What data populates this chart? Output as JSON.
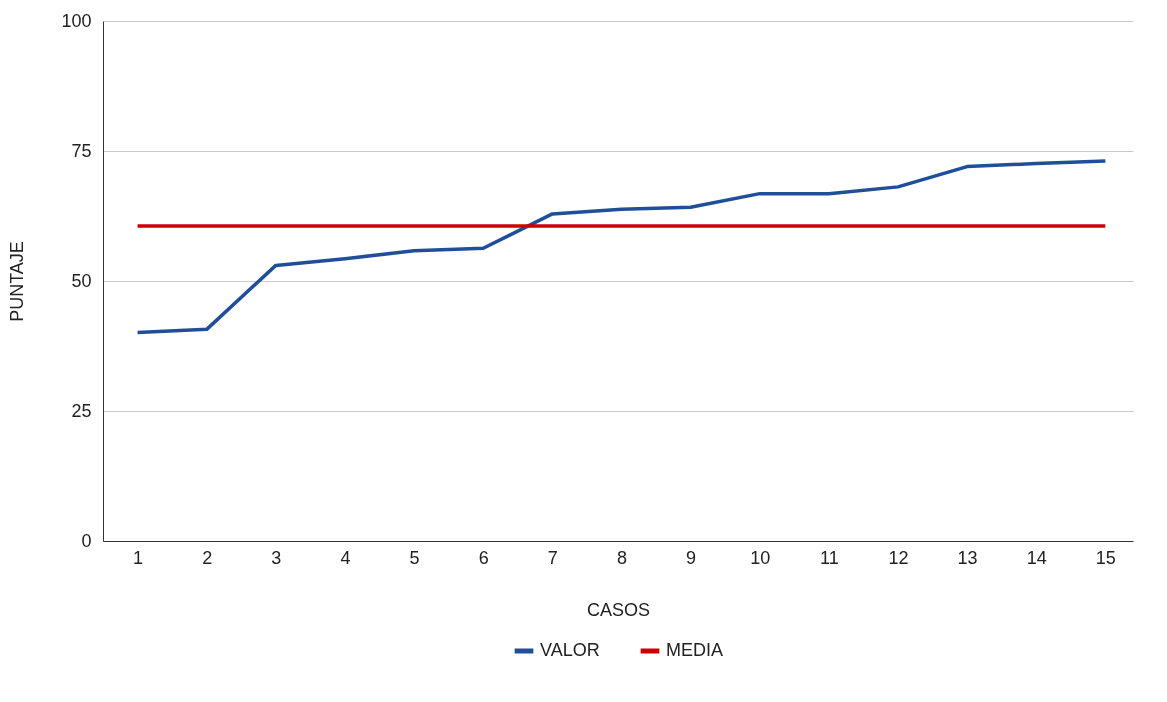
{
  "chart_data": {
    "type": "line",
    "xlabel": "CASOS",
    "ylabel": "PUNTAJE",
    "x": [
      1,
      2,
      3,
      4,
      5,
      6,
      7,
      8,
      9,
      10,
      11,
      12,
      13,
      14,
      15
    ],
    "xlim": [
      0.5,
      15.4
    ],
    "xticks": [
      1,
      2,
      3,
      4,
      5,
      6,
      7,
      8,
      9,
      10,
      11,
      12,
      13,
      14,
      15
    ],
    "series": [
      {
        "name": "VALOR",
        "color": "#1f4e9a",
        "values": [
          40.1,
          40.7,
          53.0,
          54.3,
          55.8,
          56.3,
          62.9,
          63.8,
          64.2,
          66.8,
          66.8,
          68.1,
          72.0,
          72.6,
          73.1
        ]
      },
      {
        "name": "MEDIA",
        "color": "#cc0000",
        "values": [
          60.6,
          60.6,
          60.6,
          60.6,
          60.6,
          60.6,
          60.6,
          60.6,
          60.6,
          60.6,
          60.6,
          60.6,
          60.6,
          60.6,
          60.6
        ]
      }
    ],
    "ylim": [
      0,
      100
    ],
    "yticks": [
      0,
      25,
      50,
      75,
      100
    ],
    "grid": "y",
    "legend": "bottom"
  }
}
